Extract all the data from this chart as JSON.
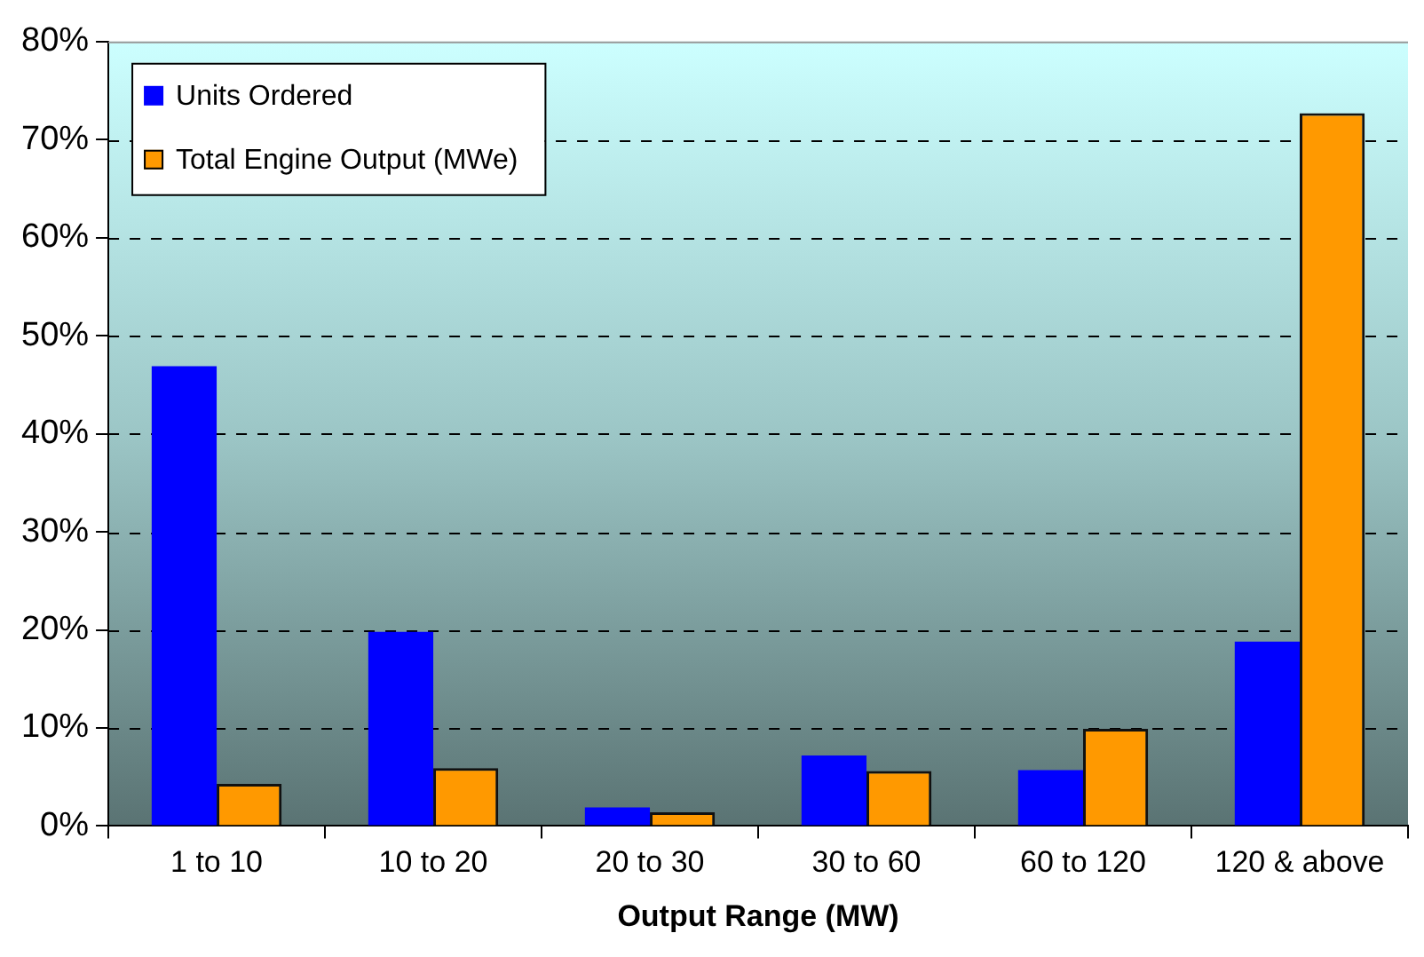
{
  "chart_data": {
    "type": "bar",
    "xlabel": "Output Range (MW)",
    "categories": [
      "1 to 10",
      "10 to 20",
      "20 to 30",
      "30 to 60",
      "60 to 120",
      "120 & above"
    ],
    "series": [
      {
        "name": "Units Ordered",
        "color": "#0000ff",
        "values": [
          46.9,
          19.8,
          1.9,
          7.2,
          5.7,
          18.8
        ]
      },
      {
        "name": "Total Engine Output (MWe)",
        "color": "#ff9900",
        "values": [
          4.3,
          5.9,
          1.4,
          5.6,
          9.9,
          72.7
        ]
      }
    ],
    "ylim": [
      0,
      80
    ],
    "yticks": [
      {
        "value": 0,
        "label": "0%"
      },
      {
        "value": 10,
        "label": "10%"
      },
      {
        "value": 20,
        "label": "20%"
      },
      {
        "value": 30,
        "label": "30%"
      },
      {
        "value": 40,
        "label": "40%"
      },
      {
        "value": 50,
        "label": "50%"
      },
      {
        "value": 60,
        "label": "60%"
      },
      {
        "value": 70,
        "label": "70%"
      },
      {
        "value": 80,
        "label": "80%"
      }
    ],
    "grid": "y",
    "legend": "top left"
  }
}
